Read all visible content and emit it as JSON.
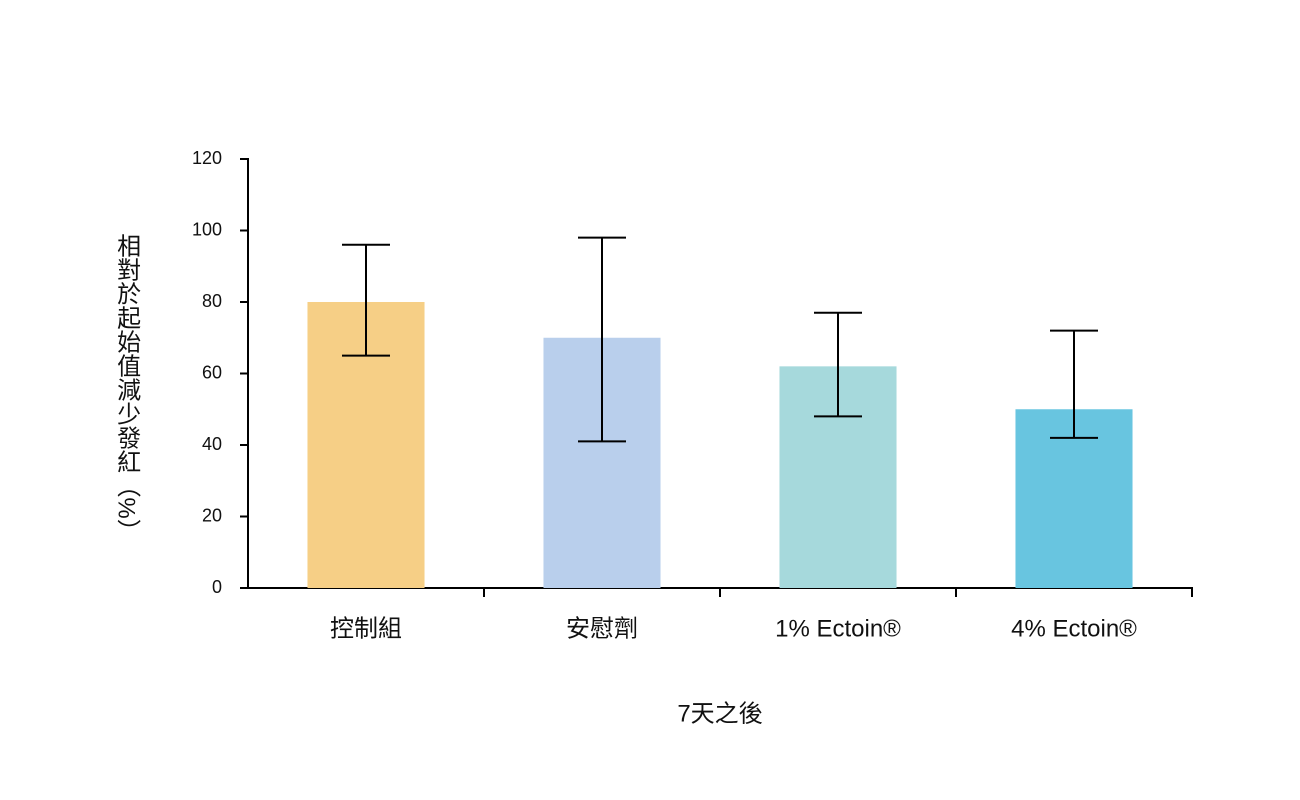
{
  "chart_data": {
    "type": "bar",
    "y_label": "相對於起始值減少發紅（%）",
    "x_label": "7天之後",
    "categories": [
      "控制組",
      "安慰劑",
      "1% Ectoin®",
      "4% Ectoin®"
    ],
    "values": [
      80,
      70,
      62,
      50
    ],
    "errors_plus": [
      16,
      28,
      15,
      22
    ],
    "errors_minus": [
      15,
      29,
      14,
      8
    ],
    "colors": [
      "#f6cf86",
      "#b9cfec",
      "#a6d9dc",
      "#68c5e0"
    ],
    "ylim": [
      0,
      120
    ],
    "yticks": [
      0,
      20,
      40,
      60,
      80,
      100,
      120
    ],
    "grid": false
  }
}
